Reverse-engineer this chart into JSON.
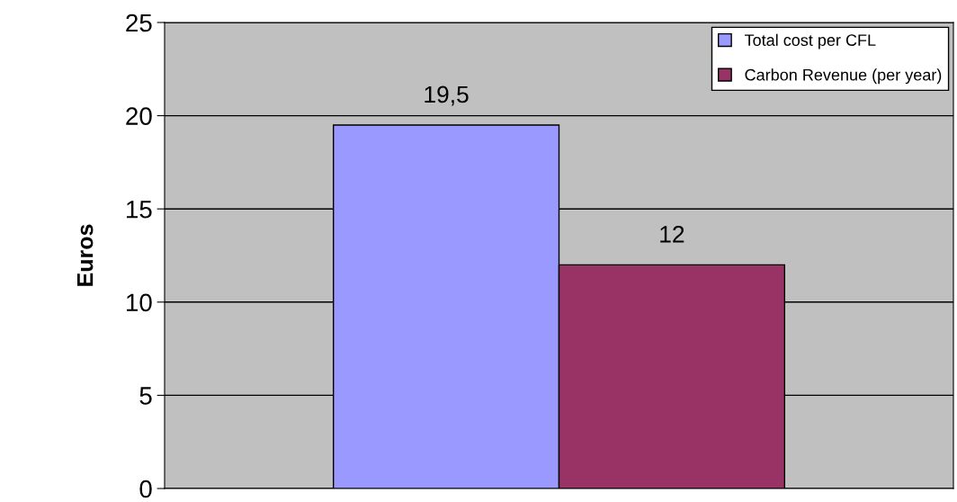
{
  "chart_data": {
    "type": "bar",
    "ylabel": "Euros",
    "categories": [
      null
    ],
    "series": [
      {
        "name": "Total cost per CFL",
        "color": "#9999ff",
        "values": [
          19.5
        ],
        "value_labels": [
          "19,5"
        ]
      },
      {
        "name": "Carbon Revenue (per year)",
        "color": "#993366",
        "values": [
          12
        ],
        "value_labels": [
          "12"
        ]
      }
    ],
    "ylim": [
      0,
      25
    ],
    "yticks": [
      0,
      5,
      10,
      15,
      20,
      25
    ],
    "grid": "y",
    "legend": "top right",
    "tick_labels": "y"
  }
}
